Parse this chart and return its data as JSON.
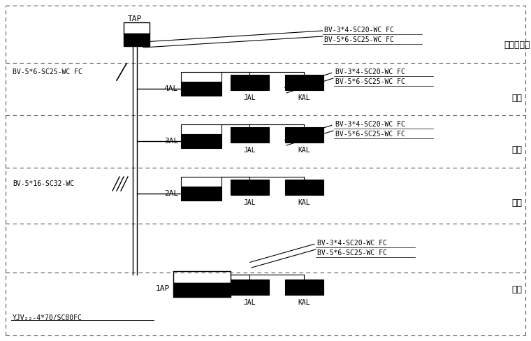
{
  "bg_color": "#ffffff",
  "text_color": "#000000",
  "fig_width": 7.6,
  "fig_height": 4.88,
  "dpi": 100,
  "floor_labels": [
    "电梯机房层",
    "四层",
    "三层",
    "二层",
    "一层"
  ],
  "font_size_label": 8,
  "font_size_box_label": 7,
  "font_size_annotation": 7,
  "font_size_floor": 9
}
